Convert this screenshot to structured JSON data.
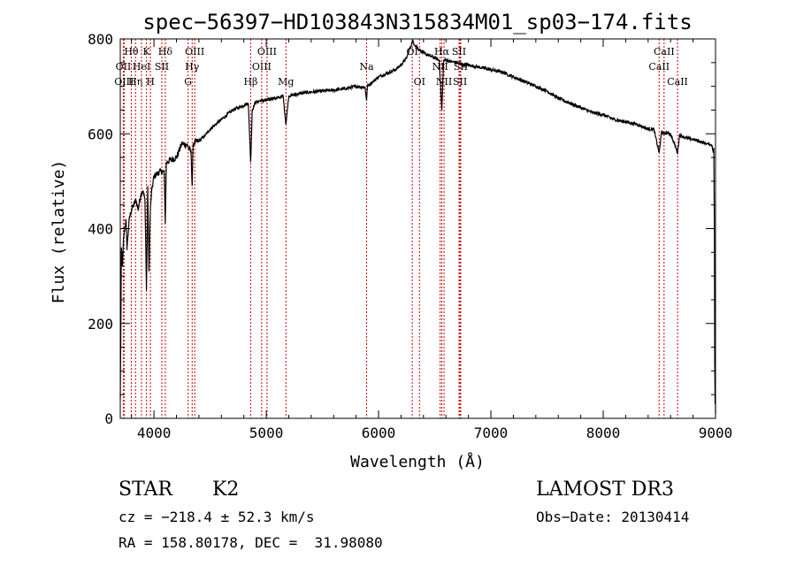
{
  "chart_data": {
    "type": "line",
    "title": "spec−56397−HD103843N315834M01_sp03−174.fits",
    "xlabel": "Wavelength (Å)",
    "ylabel": "Flux (relative)",
    "xlim": [
      3700,
      9000
    ],
    "ylim": [
      0,
      800
    ],
    "xticks": [
      4000,
      5000,
      6000,
      7000,
      8000,
      9000
    ],
    "yticks": [
      0,
      200,
      400,
      600,
      800
    ],
    "grid": false,
    "series": [
      {
        "name": "spectrum",
        "x": [
          3700,
          3710,
          3720,
          3730,
          3740,
          3750,
          3760,
          3780,
          3800,
          3820,
          3840,
          3860,
          3880,
          3900,
          3920,
          3933,
          3945,
          3955,
          3968,
          3980,
          4000,
          4050,
          4090,
          4101,
          4110,
          4150,
          4200,
          4250,
          4300,
          4330,
          4340,
          4350,
          4400,
          4450,
          4500,
          4550,
          4600,
          4650,
          4700,
          4750,
          4800,
          4840,
          4861,
          4875,
          4900,
          4950,
          5000,
          5050,
          5100,
          5150,
          5175,
          5200,
          5300,
          5400,
          5500,
          5600,
          5700,
          5800,
          5880,
          5893,
          5900,
          5950,
          6000,
          6050,
          6100,
          6150,
          6200,
          6250,
          6300,
          6350,
          6400,
          6450,
          6500,
          6540,
          6563,
          6580,
          6600,
          6650,
          6700,
          6750,
          6800,
          6900,
          7000,
          7100,
          7200,
          7300,
          7400,
          7500,
          7600,
          7700,
          7800,
          7900,
          8000,
          8100,
          8200,
          8300,
          8400,
          8450,
          8498,
          8520,
          8542,
          8560,
          8600,
          8662,
          8680,
          8700,
          8750,
          8800,
          8850,
          8900,
          8950,
          8970,
          8980,
          8985,
          8990,
          8993,
          8996,
          8998,
          9000
        ],
        "values": [
          40,
          360,
          320,
          380,
          400,
          420,
          360,
          420,
          440,
          450,
          460,
          440,
          470,
          480,
          460,
          270,
          490,
          310,
          440,
          480,
          510,
          520,
          520,
          410,
          540,
          545,
          550,
          580,
          575,
          560,
          490,
          580,
          585,
          595,
          610,
          620,
          630,
          640,
          650,
          655,
          660,
          665,
          540,
          650,
          665,
          670,
          670,
          675,
          675,
          680,
          620,
          680,
          685,
          688,
          690,
          692,
          695,
          700,
          698,
          670,
          700,
          710,
          720,
          725,
          730,
          735,
          745,
          760,
          795,
          780,
          770,
          765,
          760,
          755,
          650,
          755,
          755,
          752,
          750,
          745,
          745,
          740,
          735,
          730,
          720,
          710,
          700,
          690,
          675,
          665,
          655,
          645,
          640,
          630,
          625,
          620,
          610,
          610,
          560,
          605,
          600,
          602,
          600,
          560,
          598,
          595,
          590,
          588,
          585,
          580,
          578,
          575,
          560,
          570,
          400,
          120,
          30,
          150,
          10
        ]
      }
    ],
    "lines": [
      {
        "label": "Hθ",
        "x": 3798,
        "row": 1
      },
      {
        "label": "OII",
        "x": 3727,
        "row": 2
      },
      {
        "label": "OIII",
        "x": 3734,
        "row": 3
      },
      {
        "label": "Hη",
        "x": 3835,
        "row": 3
      },
      {
        "label": "HeI",
        "x": 3889,
        "row": 2
      },
      {
        "label": "K",
        "x": 3933,
        "row": 1
      },
      {
        "label": "SII",
        "x": 4070,
        "row": 2
      },
      {
        "label": "H",
        "x": 3968,
        "row": 3
      },
      {
        "label": "Hδ",
        "x": 4101,
        "row": 1
      },
      {
        "label": "OIII",
        "x": 4363,
        "row": 1
      },
      {
        "label": "Hγ",
        "x": 4340,
        "row": 2
      },
      {
        "label": "G",
        "x": 4304,
        "row": 3
      },
      {
        "label": "OIII",
        "x": 5007,
        "row": 1
      },
      {
        "label": "OIII",
        "x": 4959,
        "row": 2
      },
      {
        "label": "Hβ",
        "x": 4861,
        "row": 3
      },
      {
        "label": "Mg",
        "x": 5175,
        "row": 3
      },
      {
        "label": "Na",
        "x": 5893,
        "row": 2
      },
      {
        "label": "OI",
        "x": 6300,
        "row": 1
      },
      {
        "label": "OI",
        "x": 6364,
        "row": 3
      },
      {
        "label": "Hα",
        "x": 6563,
        "row": 1
      },
      {
        "label": "SII",
        "x": 6716,
        "row": 1
      },
      {
        "label": "NII",
        "x": 6548,
        "row": 2
      },
      {
        "label": "SII",
        "x": 6731,
        "row": 2
      },
      {
        "label": "NII",
        "x": 6583,
        "row": 3
      },
      {
        "label": "SII",
        "x": 6725,
        "row": 3
      },
      {
        "label": "CaII",
        "x": 8542,
        "row": 1
      },
      {
        "label": "CaII",
        "x": 8498,
        "row": 2
      },
      {
        "label": "CaII",
        "x": 8662,
        "row": 3
      }
    ]
  },
  "info": {
    "class": "STAR",
    "subclass": "K2",
    "survey": "LAMOST DR3",
    "cz": "cz = −218.4 ± 52.3 km/s",
    "obs_date": "Obs−Date: 20130414",
    "radec": "RA = 158.80178, DEC =  31.98080"
  }
}
